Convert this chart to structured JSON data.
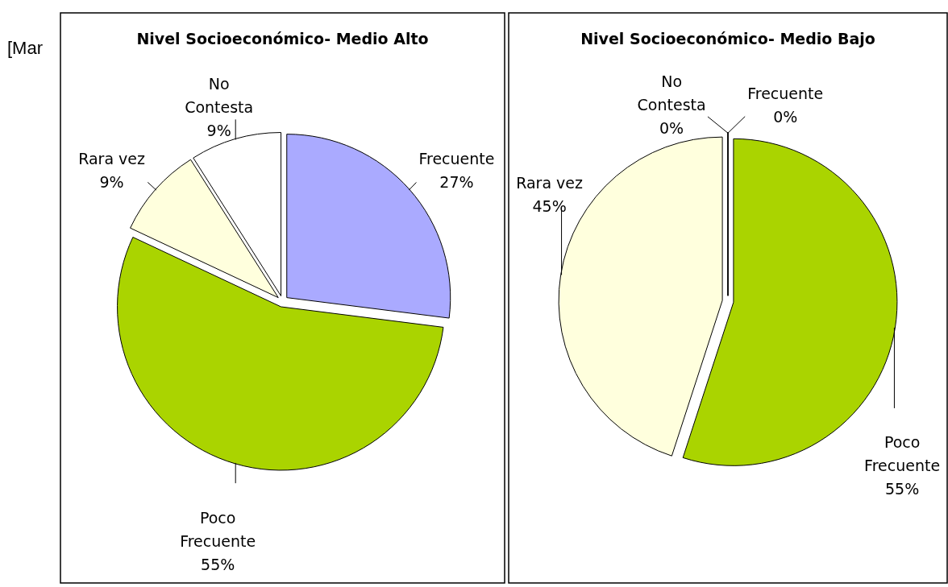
{
  "chart_data": [
    {
      "type": "pie",
      "title": "Nivel Socioeconómico- Medio Alto",
      "categories": [
        "Frecuente",
        "Poco Frecuente",
        "Rara vez",
        "No Contesta"
      ],
      "values": [
        27,
        55,
        9,
        9
      ],
      "colors": [
        "#aaaaff",
        "#aad400",
        "#ffffdd",
        "#ffffff"
      ],
      "value_labels": [
        "27%",
        "55%",
        "9%",
        "9%"
      ],
      "annotations": [
        "[Mar"
      ]
    },
    {
      "type": "pie",
      "title": "Nivel Socioeconómico- Medio Bajo",
      "categories": [
        "Frecuente",
        "Poco Frecuente",
        "Rara vez",
        "No Contesta"
      ],
      "values": [
        0,
        55,
        45,
        0
      ],
      "colors": [
        "#aaaaff",
        "#aad400",
        "#ffffdd",
        "#ffffff"
      ],
      "value_labels": [
        "0%",
        "55%",
        "45%",
        "0%"
      ]
    }
  ]
}
